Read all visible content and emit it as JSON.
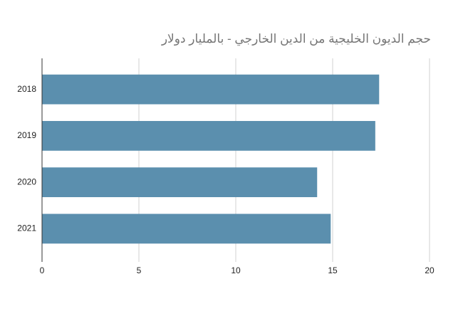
{
  "chart_data": {
    "type": "bar",
    "orientation": "horizontal",
    "title": "حجم الديون الخليجية من الدين الخارجي - بالمليار دولار",
    "categories": [
      "2018",
      "2019",
      "2020",
      "2021"
    ],
    "values": [
      17.4,
      17.2,
      14.2,
      14.9
    ],
    "color": "#5b8fae",
    "xlim": [
      0,
      20
    ],
    "xticks": [
      0,
      5,
      10,
      15,
      20
    ],
    "grid": true
  }
}
